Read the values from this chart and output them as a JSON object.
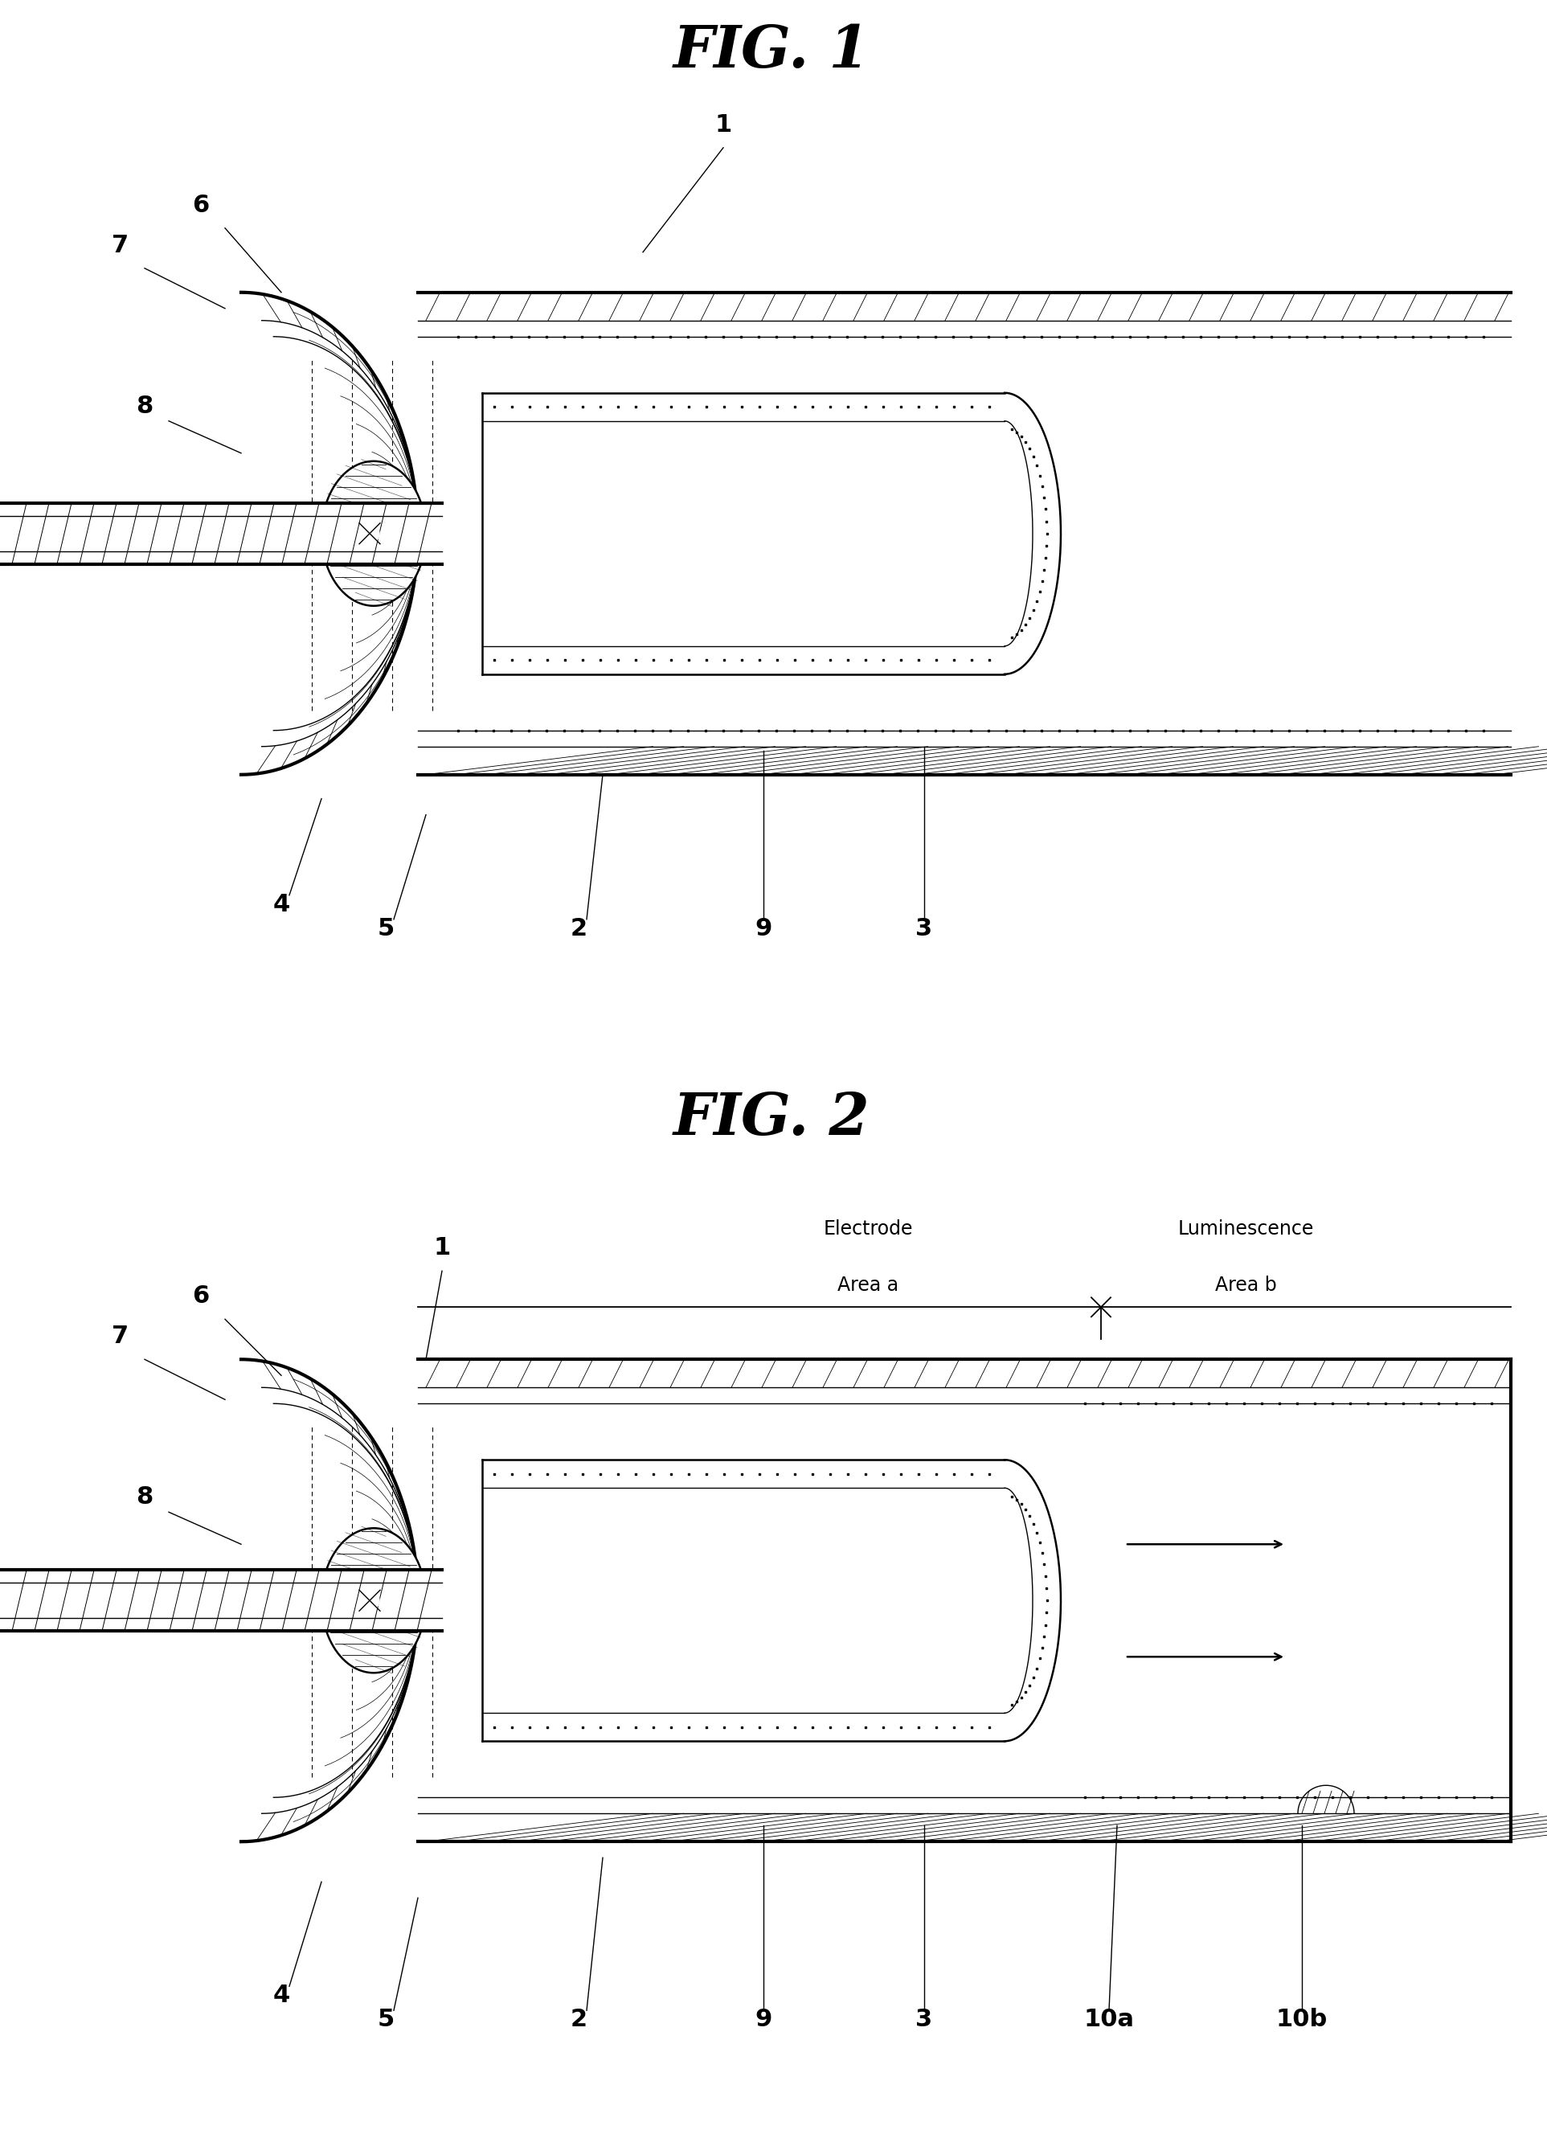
{
  "bg": "#ffffff",
  "lw_thick": 3.0,
  "lw_med": 1.8,
  "lw_thin": 1.0,
  "fig1_title": "FIG. 1",
  "fig2_title": "FIG. 2",
  "electrode_area": "Electrode\nArea a",
  "luminescence_area": "Luminescence\nArea b"
}
